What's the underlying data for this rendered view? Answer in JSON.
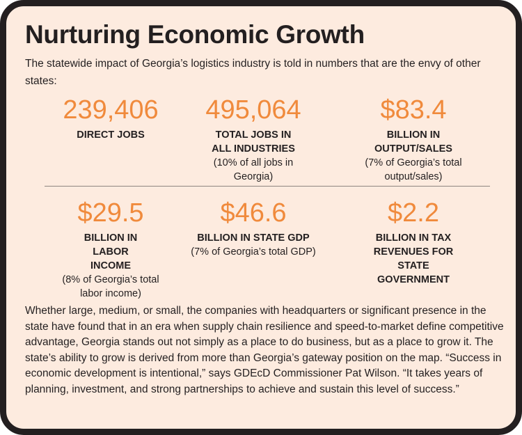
{
  "title": "Nurturing Economic Growth",
  "intro": "The statewide impact of Georgia’s logistics industry is told in numbers that are the envy of other states:",
  "stats": [
    {
      "value": "239,406",
      "label": "DIRECT JOBS",
      "note": ""
    },
    {
      "value": "495,064",
      "label": "TOTAL JOBS IN ALL INDUSTRIES",
      "note": "(10% of all jobs in Georgia)"
    },
    {
      "value": "$83.4",
      "label": "BILLION IN OUTPUT/SALES",
      "note": "(7% of Georgia’s total output/sales)"
    },
    {
      "value": "$29.5",
      "label": "BILLION IN LABOR INCOME",
      "note": "(8% of Georgia’s total labor income)"
    },
    {
      "value": "$46.6",
      "label": "BILLION IN STATE GDP",
      "note": "(7% of Georgia’s total GDP)"
    },
    {
      "value": "$2.2",
      "label": "BILLION IN TAX REVENUES FOR STATE GOVERNMENT",
      "note": ""
    }
  ],
  "body": "Whether large, medium, or small, the companies with headquarters or significant presence in the state have found that in an era when supply chain resilience and speed-to-market define competitive advantage, Georgia stands out not simply as a place to do business, but as a place to grow it. The state’s ability to grow is derived from more than Georgia’s gateway position on the map. “Success in economic development is intentional,” says GDEcD Commissioner Pat Wilson. “It takes years of planning, investment, and strong partnerships to achieve and sustain this level of success.”",
  "colors": {
    "accent": "#f08a3c",
    "background": "#fdebdf",
    "border": "#231f20"
  }
}
